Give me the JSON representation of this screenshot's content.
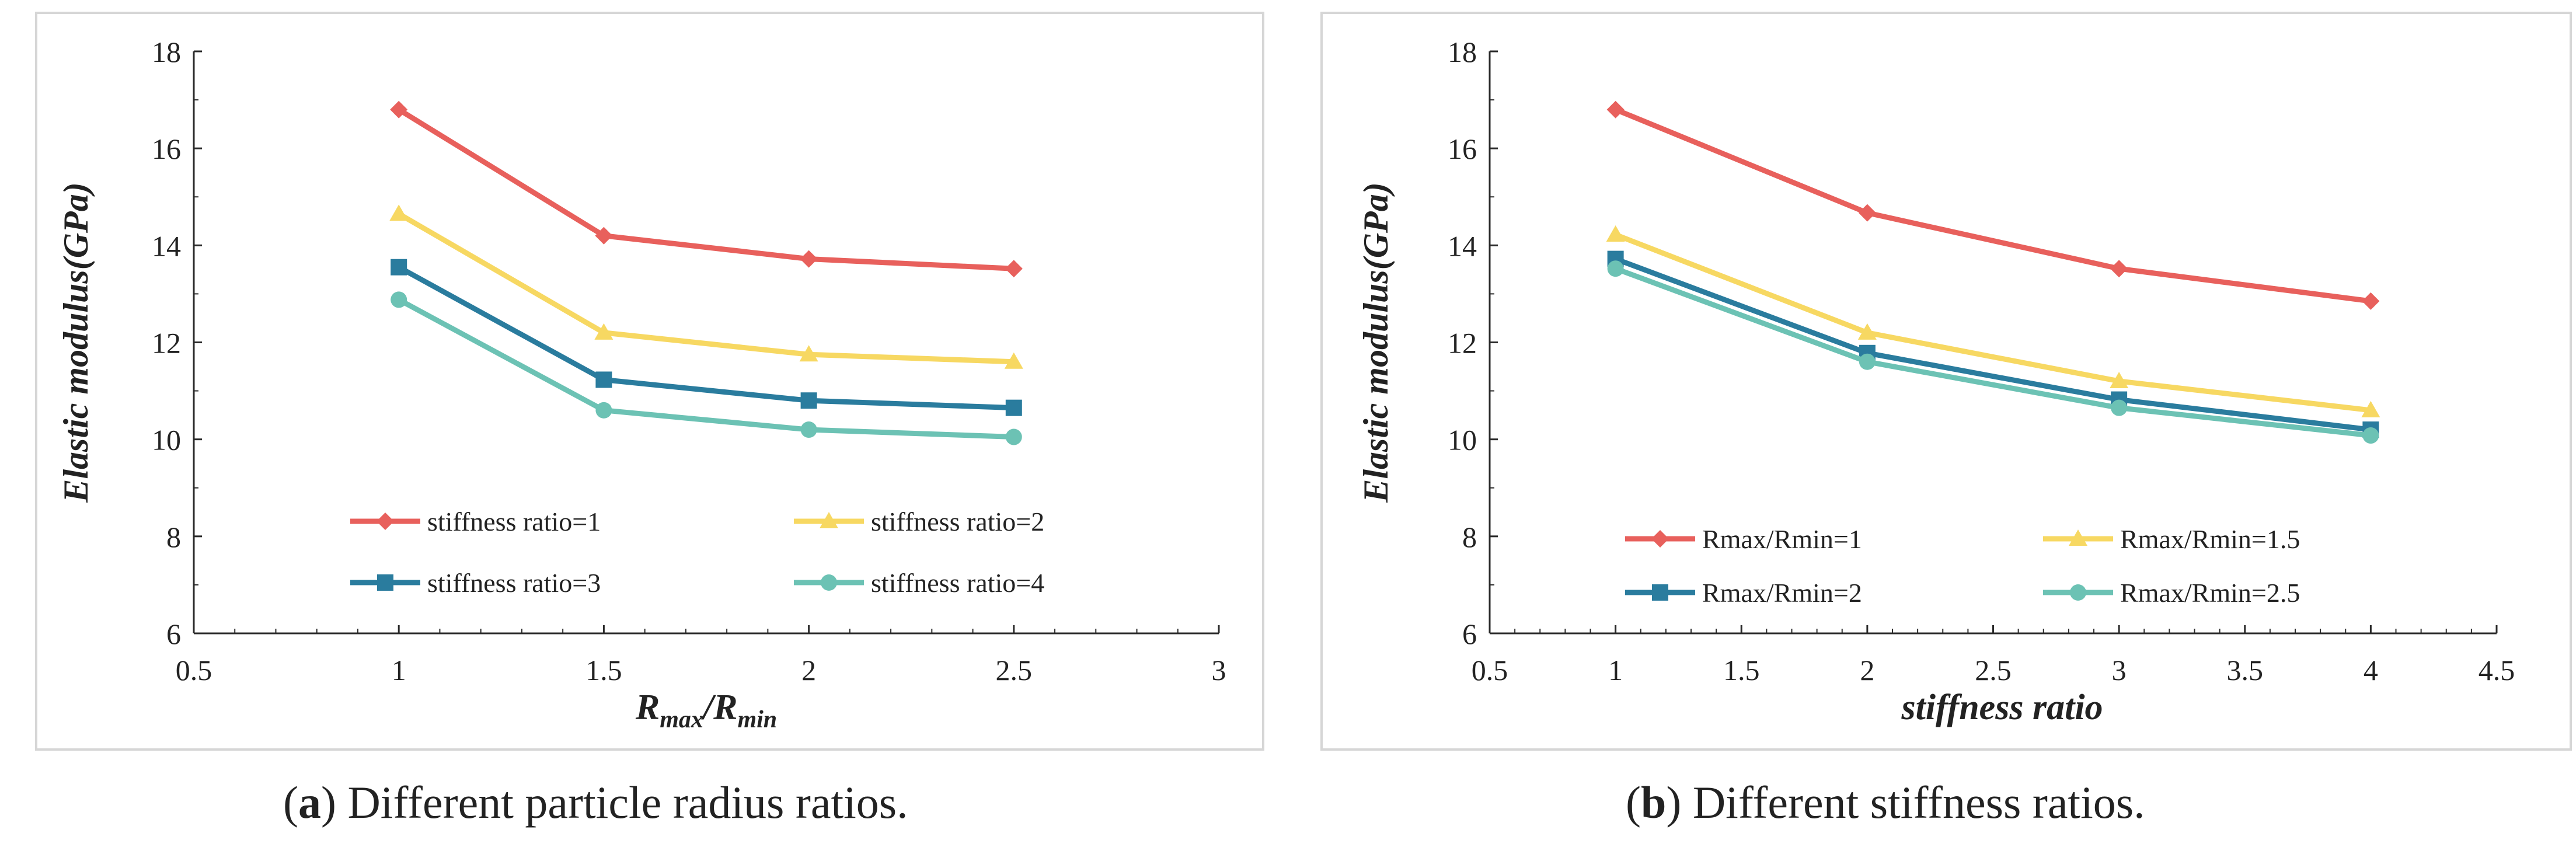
{
  "colors": {
    "s1": "#E8605C",
    "s2": "#F7D862",
    "s3": "#2A7C9E",
    "s4": "#6CC2B4",
    "frame": "#d6d6d6",
    "axis": "#2a2a2a"
  },
  "chart_data": [
    {
      "type": "line",
      "title": "",
      "ylabel": "Elastic modulus(GPa)",
      "xlabel_main": "R",
      "xlabel_sub1": "max",
      "xlabel_mid": "/R",
      "xlabel_sub2": "min",
      "xlim": [
        0.5,
        3
      ],
      "ylim": [
        6,
        18
      ],
      "xticks": [
        0.5,
        1,
        1.5,
        2,
        2.5,
        3
      ],
      "xtick_labels": [
        "0.5",
        "1",
        "1.5",
        "2",
        "2.5",
        "3"
      ],
      "yticks": [
        6,
        8,
        10,
        12,
        14,
        16,
        18
      ],
      "ytick_labels": [
        "6",
        "8",
        "10",
        "12",
        "14",
        "16",
        "18"
      ],
      "legend_position": "bottom-inside",
      "x": [
        1,
        1.5,
        2,
        2.5
      ],
      "series": [
        {
          "name": "stiffness ratio=1",
          "marker": "diamond",
          "color_key": "s1",
          "values": [
            16.8,
            14.2,
            13.72,
            13.52
          ]
        },
        {
          "name": "stiffness ratio=2",
          "marker": "triangle",
          "color_key": "s2",
          "values": [
            14.65,
            12.2,
            11.75,
            11.6
          ]
        },
        {
          "name": "stiffness ratio=3",
          "marker": "square",
          "color_key": "s3",
          "values": [
            13.55,
            11.23,
            10.8,
            10.65
          ]
        },
        {
          "name": "stiffness ratio=4",
          "marker": "circle",
          "color_key": "s4",
          "values": [
            12.88,
            10.6,
            10.2,
            10.05
          ]
        }
      ]
    },
    {
      "type": "line",
      "title": "",
      "ylabel": "Elastic modulus(GPa)",
      "xlabel": "stiffness ratio",
      "xlim": [
        0.5,
        4.5
      ],
      "ylim": [
        6,
        18
      ],
      "xticks": [
        0.5,
        1,
        1.5,
        2,
        2.5,
        3,
        3.5,
        4,
        4.5
      ],
      "xtick_labels": [
        "0.5",
        "1",
        "1.5",
        "2",
        "2.5",
        "3",
        "3.5",
        "4",
        "4.5"
      ],
      "yticks": [
        6,
        8,
        10,
        12,
        14,
        16,
        18
      ],
      "ytick_labels": [
        "6",
        "8",
        "10",
        "12",
        "14",
        "16",
        "18"
      ],
      "legend_position": "bottom-inside",
      "x": [
        1,
        2,
        3,
        4
      ],
      "series": [
        {
          "name": "Rmax/Rmin=1",
          "marker": "diamond",
          "color_key": "s1",
          "values": [
            16.8,
            14.67,
            13.52,
            12.85
          ]
        },
        {
          "name": "Rmax/Rmin=1.5",
          "marker": "triangle",
          "color_key": "s2",
          "values": [
            14.22,
            12.2,
            11.2,
            10.6
          ]
        },
        {
          "name": "Rmax/Rmin=2",
          "marker": "square",
          "color_key": "s3",
          "values": [
            13.72,
            11.78,
            10.82,
            10.2
          ]
        },
        {
          "name": "Rmax/Rmin=2.5",
          "marker": "circle",
          "color_key": "s4",
          "values": [
            13.52,
            11.6,
            10.65,
            10.08
          ]
        }
      ]
    }
  ],
  "captions": [
    {
      "label": "a",
      "text": ") Different particle radius ratios."
    },
    {
      "label": "b",
      "text": ") Different stiffness ratios."
    }
  ]
}
